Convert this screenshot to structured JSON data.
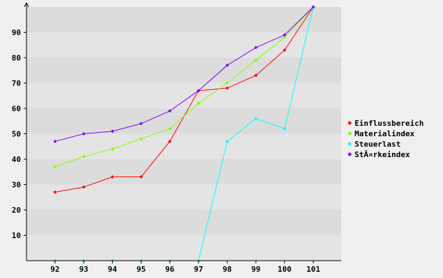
{
  "chart_data": {
    "type": "line",
    "x": [
      "92",
      "93",
      "94",
      "95",
      "96",
      "97",
      "98",
      "99",
      "100",
      "101"
    ],
    "ylim": [
      0,
      100
    ],
    "yticks": [
      10,
      20,
      30,
      40,
      50,
      60,
      70,
      80,
      90
    ],
    "grid": "horizontal-bands",
    "legend_position": "right",
    "series": [
      {
        "name": "Einflussbereich",
        "color": "#ff0000",
        "values": [
          27,
          29,
          33,
          33,
          47,
          67,
          68,
          73,
          83,
          100
        ]
      },
      {
        "name": "Materialindex",
        "color": "#80ff00",
        "values": [
          37,
          41,
          44,
          48,
          52,
          62,
          70,
          79,
          88,
          100
        ]
      },
      {
        "name": "Steuerlast",
        "color": "#00ffff",
        "values": [
          0,
          0,
          0,
          0,
          0,
          0,
          47,
          56,
          52,
          100
        ]
      },
      {
        "name": "StÃ¤rkeindex",
        "color": "#8000ff",
        "values": [
          47,
          50,
          51,
          54,
          59,
          67,
          77,
          84,
          89,
          100
        ]
      }
    ]
  }
}
